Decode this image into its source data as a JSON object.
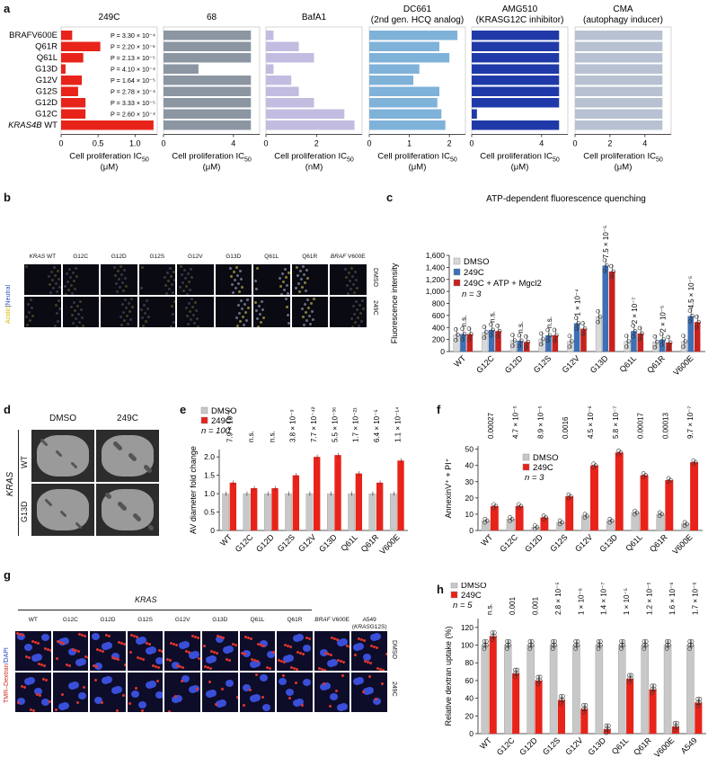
{
  "panels": {
    "a": {
      "letter": "a",
      "rows": [
        "BRAFV600E",
        "Q61R",
        "Q61L",
        "G13D",
        "G12V",
        "G12S",
        "G12D",
        "G12C",
        "KRAS4B WT"
      ],
      "charts": [
        {
          "title": "249C",
          "color": "#e8231a",
          "values": [
            0.15,
            0.53,
            0.3,
            0.06,
            0.28,
            0.23,
            0.33,
            0.33,
            1.25
          ],
          "xmax": 1.3,
          "ticks": [
            "0",
            "0.5",
            "1.0"
          ],
          "tickvals": [
            0,
            0.5,
            1.0
          ],
          "xlabel": "Cell proliferation IC",
          "xlabel_sub": "50",
          "unit": "(μM)",
          "pvals": [
            "P = 3.30 × 10⁻⁴",
            "P = 2.20 × 10⁻⁶",
            "P = 2.13 × 10⁻⁵",
            "P = 4.10 × 10⁻⁴",
            "P = 1.64 × 10⁻⁵",
            "P = 2.78 × 10⁻⁴",
            "P = 3.33 × 10⁻⁵",
            "P = 2.60 × 10⁻⁴"
          ]
        },
        {
          "title": "68",
          "color": "#8c96a2",
          "values": [
            5,
            5,
            5,
            2,
            5,
            5,
            5,
            5,
            5
          ],
          "xmax": 5.5,
          "ticks": [
            "0",
            "4"
          ],
          "tickvals": [
            0,
            4
          ],
          "xlabel": "Cell proliferation IC",
          "xlabel_sub": "50",
          "unit": "(μM)"
        },
        {
          "title": "BafA1",
          "color": "#c1bce0",
          "values": [
            0.3,
            1.3,
            1.9,
            0.3,
            1.0,
            1.3,
            1.9,
            3.1,
            3.5
          ],
          "xmax": 3.8,
          "ticks": [
            "0",
            "2"
          ],
          "tickvals": [
            0,
            2
          ],
          "xlabel": "Cell proliferation IC",
          "xlabel_sub": "50",
          "unit": "(nM)"
        },
        {
          "title": "DC661",
          "title2": "(2nd gen. HCQ analog)",
          "color": "#7fb2d9",
          "values": [
            2.2,
            1.75,
            2.0,
            1.25,
            1.1,
            1.75,
            1.7,
            1.8,
            1.9
          ],
          "xmax": 2.4,
          "ticks": [
            "0",
            "1",
            "2"
          ],
          "tickvals": [
            0,
            1,
            2
          ],
          "xlabel": "Cell proliferation IC",
          "xlabel_sub": "50",
          "unit": "(μM)"
        },
        {
          "title": "AMG510",
          "title2": "(KRASG12C inhibitor)",
          "color": "#1f3aa8",
          "values": [
            5,
            5,
            5,
            5,
            5,
            5,
            5,
            0.3,
            5
          ],
          "xmax": 5.5,
          "ticks": [
            "0",
            "4"
          ],
          "tickvals": [
            0,
            4
          ],
          "xlabel": "Cell proliferation IC",
          "xlabel_sub": "50",
          "unit": "(μM)"
        },
        {
          "title": "CMA",
          "title2": "(autophagy inducer)",
          "color": "#b7c1d1",
          "values": [
            5,
            5,
            5,
            5,
            5,
            5,
            5,
            5,
            5
          ],
          "xmax": 5.5,
          "ticks": [
            "0",
            "2",
            "4"
          ],
          "tickvals": [
            0,
            2,
            4
          ],
          "xlabel": "Cell proliferation IC",
          "xlabel_sub": "50",
          "unit": "(μM)"
        }
      ]
    },
    "b": {
      "letter": "b",
      "headers": [
        "KRAS WT",
        "G12C",
        "G12D",
        "G12S",
        "G12V",
        "G13D",
        "Q61L",
        "Q61R",
        "BRAF V600E"
      ],
      "side_label_top": "Acidic",
      "side_label_mid": "|",
      "side_label_bot": "Neutral",
      "row_labels": [
        "DMSO",
        "249C"
      ]
    },
    "c": {
      "letter": "c",
      "title": "ATP-dependent fluorescence quenching",
      "ylabel": "Fluorescence intensity",
      "yticks": [
        "0",
        "200",
        "400",
        "600",
        "800",
        "1,000",
        "1,200",
        "1,400",
        "1,600"
      ],
      "ymax": 1600,
      "categories": [
        "WT",
        "G12C",
        "G12D",
        "G12S",
        "G12V",
        "G13D",
        "Q61L",
        "Q61R",
        "V600E"
      ],
      "legend": [
        "DMSO",
        "249C",
        "249C + ATP + Mgcl2"
      ],
      "n": "n = 3",
      "series": [
        {
          "name": "DMSO",
          "color": "#d9d9d9",
          "values": [
            280,
            320,
            185,
            210,
            170,
            580,
            170,
            160,
            170
          ]
        },
        {
          "name": "249C",
          "color": "#3c6fb4",
          "values": [
            290,
            360,
            180,
            270,
            470,
            1430,
            340,
            200,
            590
          ]
        },
        {
          "name": "249C + ATP + Mgcl2",
          "color": "#c9211d",
          "values": [
            290,
            340,
            160,
            270,
            380,
            1330,
            300,
            150,
            490
          ]
        }
      ],
      "sig": [
        "n.s.",
        "n.s.",
        "n.s.",
        "n.s.",
        "1 × 10⁻⁴",
        "7.5 × 10⁻⁵",
        "2 × 10⁻⁷",
        "2 × 10⁻⁵",
        "4.5 × 10⁻⁵"
      ]
    },
    "d": {
      "letter": "d",
      "cols": [
        "DMSO",
        "249C"
      ],
      "rows": [
        "WT",
        "G13D"
      ],
      "side": "KRAS"
    },
    "e": {
      "letter": "e",
      "ylabel": "AV diameter fold change",
      "yticks": [
        "0",
        "0.5",
        "1.0",
        "1.5",
        "2.0"
      ],
      "ymax": 2.2,
      "categories": [
        "WT",
        "G12C",
        "G12D",
        "G12S",
        "G12V",
        "G13D",
        "Q61L",
        "Q61R",
        "V600E"
      ],
      "legend": [
        "DMSO",
        "249C"
      ],
      "n": "n = 100",
      "series": [
        {
          "name": "DMSO",
          "color": "#c8c8c8",
          "values": [
            1,
            1,
            1,
            1,
            1,
            1,
            1,
            1,
            1
          ]
        },
        {
          "name": "249C",
          "color": "#e8231a",
          "values": [
            1.3,
            1.15,
            1.15,
            1.5,
            2.0,
            2.05,
            1.55,
            1.3,
            1.9
          ]
        }
      ],
      "sig": [
        "7.9 × 10⁻⁵",
        "n.s.",
        "n.s.",
        "3.8 × 10⁻⁹",
        "7.7 × 10⁻⁴²",
        "5.5 × 10⁻³⁶",
        "1.7 × 10⁻²¹",
        "6.4 × 10⁻⁵",
        "1.1 × 10⁻¹⁴"
      ]
    },
    "f": {
      "letter": "f",
      "ylabel": "AnnexinV⁺ + PI⁺",
      "yticks": [
        "0",
        "10",
        "20",
        "30",
        "40",
        "50"
      ],
      "ymax": 52,
      "categories": [
        "WT",
        "G12C",
        "G12D",
        "G12S",
        "G12V",
        "G13D",
        "Q61L",
        "Q61R",
        "V600E"
      ],
      "legend": [
        "DMSO",
        "249C"
      ],
      "n": "n = 3",
      "series": [
        {
          "name": "DMSO",
          "color": "#c8c8c8",
          "values": [
            6,
            7,
            2,
            5,
            9,
            6,
            11,
            10,
            4
          ]
        },
        {
          "name": "249C",
          "color": "#e8231a",
          "values": [
            15,
            15,
            8,
            21,
            40,
            48,
            34,
            31,
            42
          ]
        }
      ],
      "sig": [
        "0.00027",
        "4.7 × 10⁻⁵",
        "8.9 × 10⁻⁵",
        "0.0016",
        "4.5 × 10⁻⁶",
        "5.8 × 10⁻⁷",
        "0.00017",
        "0.00013",
        "9.7 × 10⁻⁷"
      ]
    },
    "g": {
      "letter": "g",
      "group_label": "KRAS",
      "headers": [
        "WT",
        "G12C",
        "G12D",
        "G12S",
        "G12V",
        "G13D",
        "Q61L",
        "Q61R",
        "BRAF V600E",
        "A549"
      ],
      "a549_sub": "(KRASG12S)",
      "side_label_a": "TMR–Dextran",
      "side_label_b": "/DAPI",
      "row_labels": [
        "DMSO",
        "249C"
      ]
    },
    "h": {
      "letter": "h",
      "ylabel": "Relative dextran uptake (%)",
      "yticks": [
        "0",
        "20",
        "40",
        "60",
        "80",
        "100",
        "120"
      ],
      "ymax": 130,
      "categories": [
        "WT",
        "G12C",
        "G12D",
        "G12S",
        "G12V",
        "G13D",
        "Q61L",
        "Q61R",
        "V600E",
        "A549"
      ],
      "legend": [
        "DMSO",
        "249C"
      ],
      "n": "n = 5",
      "series": [
        {
          "name": "DMSO",
          "color": "#c8c8c8",
          "values": [
            100,
            100,
            100,
            100,
            100,
            100,
            100,
            100,
            100,
            100
          ]
        },
        {
          "name": "249C",
          "color": "#e8231a",
          "values": [
            110,
            68,
            60,
            38,
            28,
            5,
            62,
            50,
            8,
            35
          ]
        }
      ],
      "sig": [
        "n.s.",
        "0.001",
        "0.001",
        "2.8 × 10⁻⁵",
        "1 × 10⁻⁶",
        "1.4 × 10⁻⁷",
        "1 × 10⁻⁵",
        "1.2 × 10⁻⁵",
        "1.6 × 10⁻⁶",
        "1.7 × 10⁻⁶"
      ]
    }
  }
}
